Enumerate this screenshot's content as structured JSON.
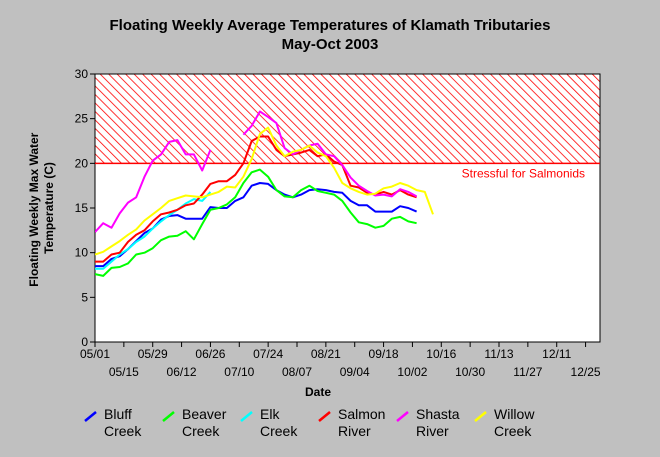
{
  "chart_data": {
    "type": "line",
    "title": "Floating Weekly Average Temperatures of Klamath Tributaries",
    "subtitle": "May-Oct 2003",
    "xlabel": "Date",
    "ylabel": "Floating Weekly Max Water Temperature (C)",
    "ylabel_lines": [
      "Floating Weekly Max Water",
      "Temperature (C)"
    ],
    "ylim": [
      0,
      30
    ],
    "yticks": [
      "0",
      "5",
      "10",
      "15",
      "20",
      "25",
      "30"
    ],
    "xlim": [
      0,
      245
    ],
    "xticks_top": [
      {
        "day": 0,
        "label": "05/01"
      },
      {
        "day": 28,
        "label": "05/29"
      },
      {
        "day": 56,
        "label": "06/26"
      },
      {
        "day": 84,
        "label": "07/24"
      },
      {
        "day": 112,
        "label": "08/21"
      },
      {
        "day": 140,
        "label": "09/18"
      },
      {
        "day": 168,
        "label": "10/16"
      },
      {
        "day": 196,
        "label": "11/13"
      },
      {
        "day": 224,
        "label": "12/11"
      }
    ],
    "xticks_bottom": [
      {
        "day": 14,
        "label": "05/15"
      },
      {
        "day": 42,
        "label": "06/12"
      },
      {
        "day": 70,
        "label": "07/10"
      },
      {
        "day": 98,
        "label": "08/07"
      },
      {
        "day": 126,
        "label": "09/04"
      },
      {
        "day": 154,
        "label": "10/02"
      },
      {
        "day": 182,
        "label": "10/30"
      },
      {
        "day": 210,
        "label": "11/27"
      },
      {
        "day": 238,
        "label": "12/25"
      }
    ],
    "grid": false,
    "legend_position": "bottom",
    "threshold": {
      "value": 20,
      "label": "Stressful for Salmonids",
      "color": "#ff0000",
      "band": [
        20,
        30
      ]
    },
    "series": [
      {
        "name": "Bluff Creek",
        "name_lines": [
          "Bluff",
          "Creek"
        ],
        "color": "#0000ff",
        "x": [
          0,
          4,
          8,
          12,
          16,
          20,
          24,
          28,
          32,
          36,
          40,
          44,
          48,
          52,
          56,
          60,
          64,
          68,
          72,
          76,
          80,
          84,
          88,
          92,
          96,
          100,
          104,
          108,
          112,
          116,
          120,
          124,
          128,
          132,
          136,
          140,
          144,
          148,
          152,
          156
        ],
        "y": [
          8.5,
          8.5,
          9.3,
          9.6,
          10.4,
          11.3,
          12.2,
          12.7,
          13.7,
          14.1,
          14.2,
          13.8,
          13.8,
          13.8,
          15.1,
          15.0,
          15.0,
          15.8,
          16.2,
          17.5,
          17.8,
          17.7,
          17.0,
          16.5,
          16.2,
          16.5,
          17.0,
          17.1,
          17.0,
          16.8,
          16.7,
          15.8,
          15.3,
          15.3,
          14.6,
          14.6,
          14.6,
          15.2,
          15.0,
          14.6
        ]
      },
      {
        "name": "Beaver Creek",
        "name_lines": [
          "Beaver",
          "Creek"
        ],
        "color": "#00ff00",
        "x": [
          0,
          4,
          8,
          12,
          16,
          20,
          24,
          28,
          32,
          36,
          40,
          44,
          48,
          52,
          56,
          60,
          64,
          68,
          72,
          76,
          80,
          84,
          88,
          92,
          96,
          100,
          104,
          108,
          112,
          116,
          120,
          124,
          128,
          132,
          136,
          140,
          144,
          148,
          152,
          156
        ],
        "y": [
          7.6,
          7.4,
          8.3,
          8.4,
          8.8,
          9.8,
          10.0,
          10.5,
          11.4,
          11.8,
          11.9,
          12.4,
          11.5,
          13.2,
          14.8,
          15.0,
          15.4,
          16.2,
          17.8,
          19.0,
          19.3,
          18.5,
          17.0,
          16.3,
          16.2,
          17.0,
          17.5,
          16.9,
          16.7,
          16.5,
          15.8,
          14.5,
          13.4,
          13.2,
          12.8,
          13.0,
          13.8,
          14.0,
          13.5,
          13.3
        ]
      },
      {
        "name": "Elk Creek",
        "name_lines": [
          "Elk",
          "Creek"
        ],
        "color": "#00ffff",
        "x": [
          0,
          4,
          8,
          12,
          16,
          20,
          24,
          28,
          32,
          36,
          40,
          44,
          48,
          52,
          56
        ],
        "y": [
          8.2,
          8.2,
          9.0,
          9.8,
          10.4,
          11.2,
          11.8,
          12.7,
          13.5,
          14.2,
          14.8,
          15.5,
          16.0,
          15.8,
          16.8
        ]
      },
      {
        "name": "Salmon River",
        "name_lines": [
          "Salmon",
          "River"
        ],
        "color": "#ff0000",
        "x": [
          0,
          4,
          8,
          12,
          16,
          20,
          24,
          28,
          32,
          36,
          40,
          44,
          48,
          52,
          56,
          60,
          64,
          68,
          72,
          76,
          80,
          84,
          88,
          92,
          96,
          100,
          104,
          108,
          112,
          116,
          120,
          124,
          128,
          132,
          136,
          140,
          144,
          148,
          152,
          156
        ],
        "y": [
          9.0,
          9.0,
          9.8,
          10.0,
          11.2,
          12.0,
          12.5,
          13.5,
          14.3,
          14.5,
          14.8,
          15.3,
          15.5,
          16.5,
          17.7,
          18.0,
          18.0,
          18.7,
          20.0,
          22.5,
          23.0,
          23.0,
          21.5,
          20.8,
          21.0,
          21.2,
          21.5,
          20.8,
          21.0,
          20.2,
          19.8,
          17.5,
          17.3,
          16.7,
          16.5,
          16.8,
          16.5,
          17.0,
          16.5,
          16.2
        ]
      },
      {
        "name": "Shasta River",
        "name_lines": [
          "Shasta",
          "River"
        ],
        "color": "#ff00ff",
        "x": [
          0,
          4,
          8,
          12,
          16,
          20,
          24,
          28,
          32,
          36,
          40,
          44,
          48,
          52,
          56,
          null,
          72,
          76,
          80,
          84,
          88,
          92,
          96,
          100,
          104,
          108,
          112,
          116,
          120,
          124,
          128,
          132,
          136,
          140,
          144,
          148,
          152,
          156
        ],
        "y": [
          12.3,
          13.3,
          12.8,
          14.4,
          15.6,
          16.2,
          18.5,
          20.3,
          21.0,
          22.4,
          22.6,
          21.0,
          21.0,
          19.2,
          21.5,
          null,
          23.2,
          24.2,
          25.8,
          25.2,
          24.5,
          21.7,
          21.0,
          21.5,
          22.0,
          22.2,
          21.0,
          20.8,
          19.8,
          18.4,
          17.5,
          16.9,
          16.4,
          16.5,
          16.3,
          17.1,
          16.8,
          16.3
        ]
      },
      {
        "name": "Willow Creek",
        "name_lines": [
          "Willow",
          "Creek"
        ],
        "color": "#ffff00",
        "x": [
          0,
          4,
          8,
          12,
          16,
          20,
          24,
          28,
          32,
          36,
          40,
          44,
          48,
          52,
          56,
          60,
          64,
          68,
          72,
          76,
          80,
          84,
          88,
          92,
          96,
          100,
          104,
          108,
          112,
          116,
          120,
          124,
          128,
          132,
          136,
          140,
          144,
          148,
          152,
          156,
          160,
          164
        ],
        "y": [
          9.8,
          10.1,
          10.7,
          11.3,
          12.0,
          12.6,
          13.6,
          14.3,
          15.0,
          15.8,
          16.1,
          16.4,
          16.3,
          16.2,
          16.5,
          16.8,
          17.4,
          17.3,
          18.5,
          20.5,
          23.3,
          24.0,
          22.0,
          20.8,
          21.3,
          21.5,
          22.0,
          21.2,
          20.8,
          19.5,
          17.8,
          17.2,
          16.8,
          16.5,
          16.6,
          17.2,
          17.4,
          17.8,
          17.5,
          17.0,
          16.8,
          14.3
        ]
      }
    ]
  }
}
